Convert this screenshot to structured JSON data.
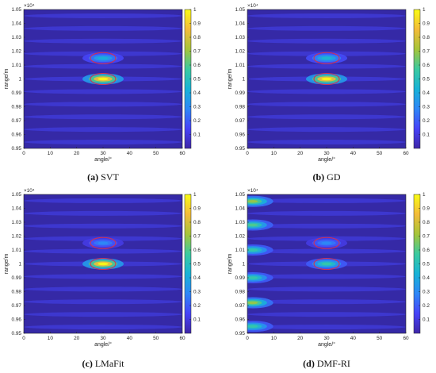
{
  "colors": {
    "colormap": [
      "#3e26a8",
      "#4743f8",
      "#2e87f7",
      "#18b3d7",
      "#3bcaa0",
      "#a6c53a",
      "#f3bb3a",
      "#f9fb15"
    ],
    "background": "#3529a6",
    "ellipse": "#cc3355"
  },
  "chart_data": [
    {
      "type": "heatmap",
      "caption_id": "(a)",
      "caption_text": "SVT",
      "xlabel": "angle/°",
      "ylabel": "range/m",
      "exponent_label": "×10⁴",
      "xlim": [
        0,
        60
      ],
      "ylim": [
        0.95,
        1.05
      ],
      "xticks": [
        "0",
        "10",
        "20",
        "30",
        "40",
        "50",
        "60"
      ],
      "yticks": [
        "0.95",
        "0.96",
        "0.97",
        "0.98",
        "0.99",
        "1",
        "1.01",
        "1.02",
        "1.03",
        "1.04",
        "1.05"
      ],
      "colorbar_ticks": [
        "0.1",
        "0.2",
        "0.3",
        "0.4",
        "0.5",
        "0.6",
        "0.7",
        "0.8",
        "0.9",
        "1"
      ],
      "peaks": [
        {
          "x": 30,
          "y": 1.0,
          "intensity": 1.0
        },
        {
          "x": 30,
          "y": 1.015,
          "intensity": 0.42
        }
      ],
      "ellipses": [
        {
          "x": 30,
          "y": 1.0
        },
        {
          "x": 30,
          "y": 1.015
        }
      ]
    },
    {
      "type": "heatmap",
      "caption_id": "(b)",
      "caption_text": "GD",
      "xlabel": "angle/°",
      "ylabel": "range/m",
      "exponent_label": "×10⁴",
      "xlim": [
        0,
        60
      ],
      "ylim": [
        0.95,
        1.05
      ],
      "xticks": [
        "0",
        "10",
        "20",
        "30",
        "40",
        "50",
        "60"
      ],
      "yticks": [
        "0.95",
        "0.96",
        "0.97",
        "0.98",
        "0.99",
        "1",
        "1.01",
        "1.02",
        "1.03",
        "1.04",
        "1.05"
      ],
      "colorbar_ticks": [
        "0.1",
        "0.2",
        "0.3",
        "0.4",
        "0.5",
        "0.6",
        "0.7",
        "0.8",
        "0.9",
        "1"
      ],
      "peaks": [
        {
          "x": 30,
          "y": 1.0,
          "intensity": 1.0
        },
        {
          "x": 30,
          "y": 1.015,
          "intensity": 0.45
        }
      ],
      "ellipses": [
        {
          "x": 30,
          "y": 1.0
        },
        {
          "x": 30,
          "y": 1.015
        }
      ]
    },
    {
      "type": "heatmap",
      "caption_id": "(c)",
      "caption_text": "LMaFit",
      "xlabel": "angle/°",
      "ylabel": "range/m",
      "exponent_label": "×10⁴",
      "xlim": [
        0,
        60
      ],
      "ylim": [
        0.95,
        1.05
      ],
      "xticks": [
        "0",
        "10",
        "20",
        "30",
        "40",
        "50",
        "60"
      ],
      "yticks": [
        "0.95",
        "0.96",
        "0.97",
        "0.98",
        "0.99",
        "1",
        "1.01",
        "1.02",
        "1.03",
        "1.04",
        "1.05"
      ],
      "colorbar_ticks": [
        "0.1",
        "0.2",
        "0.3",
        "0.4",
        "0.5",
        "0.6",
        "0.7",
        "0.8",
        "0.9",
        "1"
      ],
      "peaks": [
        {
          "x": 30,
          "y": 1.0,
          "intensity": 1.0
        },
        {
          "x": 30,
          "y": 1.015,
          "intensity": 0.3
        }
      ],
      "ellipses": [
        {
          "x": 30,
          "y": 1.0
        },
        {
          "x": 30,
          "y": 1.015
        }
      ]
    },
    {
      "type": "heatmap",
      "caption_id": "(d)",
      "caption_text": "DMF-RI",
      "xlabel": "angle/°",
      "ylabel": "range/m",
      "exponent_label": "×10⁴",
      "xlim": [
        0,
        60
      ],
      "ylim": [
        0.95,
        1.05
      ],
      "xticks": [
        "0",
        "10",
        "20",
        "30",
        "40",
        "50",
        "60"
      ],
      "yticks": [
        "0.95",
        "0.96",
        "0.97",
        "0.98",
        "0.99",
        "1",
        "1.01",
        "1.02",
        "1.03",
        "1.04",
        "1.05"
      ],
      "colorbar_ticks": [
        "0.1",
        "0.2",
        "0.3",
        "0.4",
        "0.5",
        "0.6",
        "0.7",
        "0.8",
        "0.9",
        "1"
      ],
      "peaks": [
        {
          "x": 30,
          "y": 1.0,
          "intensity": 0.55
        },
        {
          "x": 30,
          "y": 1.015,
          "intensity": 0.3
        },
        {
          "x": 2,
          "y": 1.045,
          "intensity": 0.7
        },
        {
          "x": 2,
          "y": 1.028,
          "intensity": 0.6
        },
        {
          "x": 2,
          "y": 1.01,
          "intensity": 0.55
        },
        {
          "x": 2,
          "y": 0.99,
          "intensity": 0.55
        },
        {
          "x": 2,
          "y": 0.972,
          "intensity": 0.7
        },
        {
          "x": 2,
          "y": 0.955,
          "intensity": 0.55
        }
      ],
      "ellipses": [
        {
          "x": 30,
          "y": 1.0
        },
        {
          "x": 30,
          "y": 1.015
        }
      ]
    }
  ]
}
